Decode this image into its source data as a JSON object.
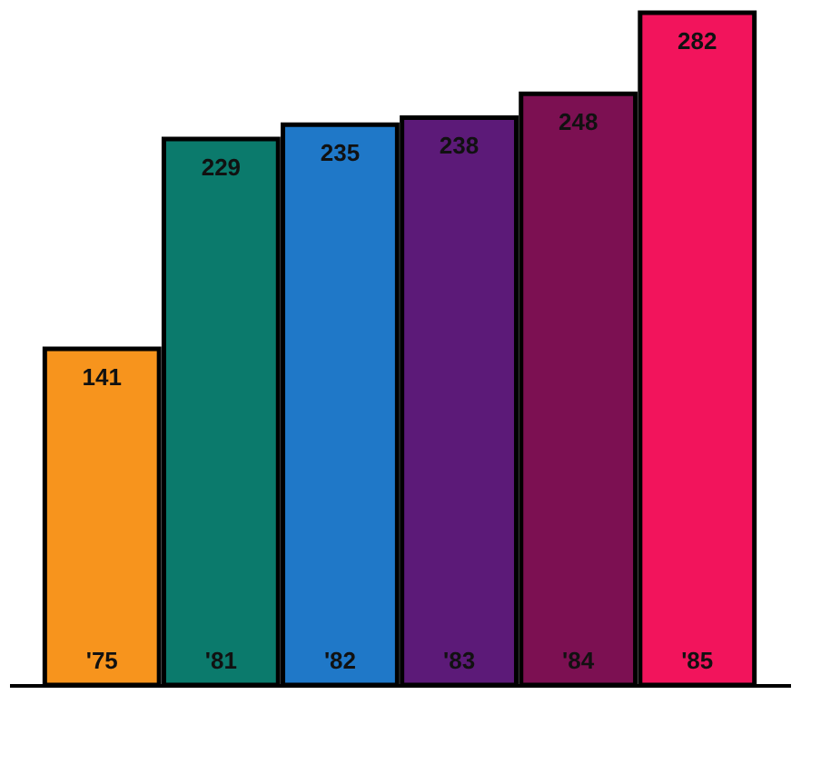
{
  "chart_data": {
    "type": "bar",
    "categories": [
      "'75",
      "'81",
      "'82",
      "'83",
      "'84",
      "'85"
    ],
    "values": [
      141,
      229,
      235,
      238,
      248,
      282
    ],
    "colors": [
      "#f7941d",
      "#0b7a6c",
      "#1f78c8",
      "#5c1a78",
      "#7c1052",
      "#f2145c"
    ],
    "data_labels": true
  }
}
